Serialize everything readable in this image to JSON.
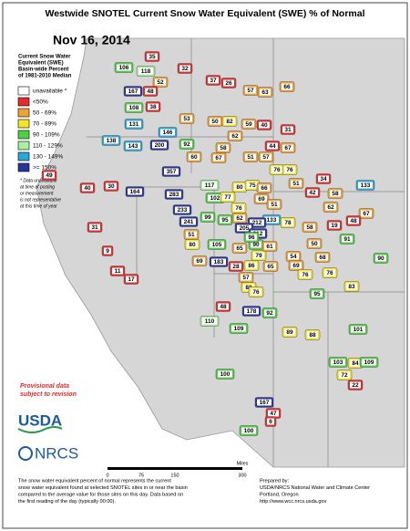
{
  "header": {
    "title": "Westwide SNOTEL Current Snow Water Equivalent (SWE) % of Normal",
    "date": "Nov 16, 2014"
  },
  "legend": {
    "title": [
      "Current Snow Water",
      "Equivalent (SWE)",
      "Basin-wide Percent",
      "of 1981-2010 Median"
    ],
    "items": [
      {
        "label": "unavailable *",
        "color": "#ffffff"
      },
      {
        "label": "<50%",
        "color": "#e52b2b"
      },
      {
        "label": "50 - 69%",
        "color": "#f0a236"
      },
      {
        "label": "70 - 89%",
        "color": "#f2e52a"
      },
      {
        "label": "90 - 109%",
        "color": "#4fcf45"
      },
      {
        "label": "110 - 129%",
        "color": "#a8f0a0"
      },
      {
        "label": "130 - 149%",
        "color": "#2aa6d9"
      },
      {
        "label": ">= 150%",
        "color": "#28359a"
      }
    ],
    "note": [
      "* Data unavailable",
      "at time of posting",
      "or measurement",
      "is not representative",
      "at this time of year"
    ]
  },
  "provisional": [
    "Provisional data",
    "subject to revision"
  ],
  "logos": [
    "USDA",
    "NRCS"
  ],
  "scale": {
    "ticks": [
      "0",
      "75",
      "150",
      "300"
    ],
    "unit": "Miles"
  },
  "footer": {
    "left": [
      "The snow water equivalent percent of normal represents the current",
      "snow water equivalent found at selected SNOTEL sites in or near the basin",
      "compared to the average value for those sites on this day. Data based on",
      "the first reading of the day (typically 00:00)."
    ],
    "right": [
      "Prepared by:",
      "USDA/NRCS National Water and Climate Center",
      "Portland, Oregon",
      "http://www.wcc.nrcs.usda.gov"
    ]
  },
  "basins": [
    {
      "value": 35,
      "color": "#e52b2b"
    },
    {
      "value": 32,
      "color": "#e52b2b"
    },
    {
      "value": 106,
      "color": "#4fcf45"
    },
    {
      "value": 118,
      "color": "#a8f0a0"
    },
    {
      "value": 52,
      "color": "#f0a236"
    },
    {
      "value": 167,
      "color": "#28359a"
    },
    {
      "value": 48,
      "color": "#e52b2b"
    },
    {
      "value": 37,
      "color": "#e52b2b"
    },
    {
      "value": 26,
      "color": "#e52b2b"
    },
    {
      "value": 57,
      "color": "#f0a236"
    },
    {
      "value": 63,
      "color": "#f0a236"
    },
    {
      "value": 66,
      "color": "#f0a236"
    },
    {
      "value": 108,
      "color": "#4fcf45"
    },
    {
      "value": 38,
      "color": "#e52b2b"
    },
    {
      "value": 53,
      "color": "#f0a236"
    },
    {
      "value": 50,
      "color": "#f0a236"
    },
    {
      "value": 82,
      "color": "#f2e52a"
    },
    {
      "value": 59,
      "color": "#f0a236"
    },
    {
      "value": 40,
      "color": "#e52b2b"
    },
    {
      "value": 31,
      "color": "#e52b2b"
    },
    {
      "value": 131,
      "color": "#2aa6d9"
    },
    {
      "value": 138,
      "color": "#2aa6d9"
    },
    {
      "value": 143,
      "color": "#2aa6d9"
    },
    {
      "value": 200,
      "color": "#28359a"
    },
    {
      "value": 146,
      "color": "#2aa6d9"
    },
    {
      "value": 92,
      "color": "#4fcf45"
    },
    {
      "value": 62,
      "color": "#f0a236"
    },
    {
      "value": 58,
      "color": "#f0a236"
    },
    {
      "value": 60,
      "color": "#f0a236"
    },
    {
      "value": 67,
      "color": "#f0a236"
    },
    {
      "value": 51,
      "color": "#f0a236"
    },
    {
      "value": 57,
      "color": "#f0a236"
    },
    {
      "value": 44,
      "color": "#e52b2b"
    },
    {
      "value": 67,
      "color": "#f0a236"
    },
    {
      "value": 76,
      "color": "#f2e52a"
    },
    {
      "value": 76,
      "color": "#f2e52a"
    },
    {
      "value": 51,
      "color": "#f0a236"
    },
    {
      "value": 34,
      "color": "#e52b2b"
    },
    {
      "value": 133,
      "color": "#2aa6d9"
    },
    {
      "value": 49,
      "color": "#e52b2b"
    },
    {
      "value": 40,
      "color": "#e52b2b"
    },
    {
      "value": 30,
      "color": "#e52b2b"
    },
    {
      "value": 164,
      "color": "#28359a"
    },
    {
      "value": 357,
      "color": "#28359a"
    },
    {
      "value": 283,
      "color": "#28359a"
    },
    {
      "value": 233,
      "color": "#28359a"
    },
    {
      "value": 241,
      "color": "#28359a"
    },
    {
      "value": 117,
      "color": "#a8f0a0"
    },
    {
      "value": 102,
      "color": "#4fcf45"
    },
    {
      "value": 77,
      "color": "#f2e52a"
    },
    {
      "value": 80,
      "color": "#f2e52a"
    },
    {
      "value": 75,
      "color": "#f2e52a"
    },
    {
      "value": 66,
      "color": "#f0a236"
    },
    {
      "value": 69,
      "color": "#f0a236"
    },
    {
      "value": 76,
      "color": "#f2e52a"
    },
    {
      "value": 42,
      "color": "#e52b2b"
    },
    {
      "value": 58,
      "color": "#f0a236"
    },
    {
      "value": 62,
      "color": "#f0a236"
    },
    {
      "value": 67,
      "color": "#f0a236"
    },
    {
      "value": 51,
      "color": "#f0a236"
    },
    {
      "value": 133,
      "color": "#2aa6d9"
    },
    {
      "value": 78,
      "color": "#f2e52a"
    },
    {
      "value": 99,
      "color": "#4fcf45"
    },
    {
      "value": 95,
      "color": "#4fcf45"
    },
    {
      "value": 62,
      "color": "#f0a236"
    },
    {
      "value": 212,
      "color": "#28359a"
    },
    {
      "value": 205,
      "color": "#28359a"
    },
    {
      "value": 212,
      "color": "#28359a"
    },
    {
      "value": 31,
      "color": "#e52b2b"
    },
    {
      "value": 51,
      "color": "#f0a236"
    },
    {
      "value": 80,
      "color": "#f2e52a"
    },
    {
      "value": 65,
      "color": "#f0a236"
    },
    {
      "value": 90,
      "color": "#4fcf45"
    },
    {
      "value": 96,
      "color": "#4fcf45"
    },
    {
      "value": 79,
      "color": "#f2e52a"
    },
    {
      "value": 61,
      "color": "#f0a236"
    },
    {
      "value": 54,
      "color": "#f0a236"
    },
    {
      "value": 50,
      "color": "#f0a236"
    },
    {
      "value": 58,
      "color": "#f0a236"
    },
    {
      "value": 19,
      "color": "#e52b2b"
    },
    {
      "value": 48,
      "color": "#e52b2b"
    },
    {
      "value": 91,
      "color": "#4fcf45"
    },
    {
      "value": 68,
      "color": "#f0a236"
    },
    {
      "value": 90,
      "color": "#4fcf45"
    },
    {
      "value": 9,
      "color": "#e52b2b"
    },
    {
      "value": 69,
      "color": "#f0a236"
    },
    {
      "value": 105,
      "color": "#4fcf45"
    },
    {
      "value": 86,
      "color": "#f2e52a"
    },
    {
      "value": 65,
      "color": "#f0a236"
    },
    {
      "value": 69,
      "color": "#f0a236"
    },
    {
      "value": 183,
      "color": "#28359a"
    },
    {
      "value": 11,
      "color": "#e52b2b"
    },
    {
      "value": 17,
      "color": "#e52b2b"
    },
    {
      "value": 28,
      "color": "#e52b2b"
    },
    {
      "value": 57,
      "color": "#f0a236"
    },
    {
      "value": 88,
      "color": "#f2e52a"
    },
    {
      "value": 76,
      "color": "#f2e52a"
    },
    {
      "value": 76,
      "color": "#f2e52a"
    },
    {
      "value": 83,
      "color": "#f2e52a"
    },
    {
      "value": 95,
      "color": "#4fcf45"
    },
    {
      "value": 76,
      "color": "#f2e52a"
    },
    {
      "value": 48,
      "color": "#e52b2b"
    },
    {
      "value": 92,
      "color": "#4fcf45"
    },
    {
      "value": 178,
      "color": "#28359a"
    },
    {
      "value": 110,
      "color": "#a8f0a0"
    },
    {
      "value": 109,
      "color": "#4fcf45"
    },
    {
      "value": 101,
      "color": "#4fcf45"
    },
    {
      "value": 89,
      "color": "#f2e52a"
    },
    {
      "value": 88,
      "color": "#f2e52a"
    },
    {
      "value": 103,
      "color": "#4fcf45"
    },
    {
      "value": 84,
      "color": "#f2e52a"
    },
    {
      "value": 109,
      "color": "#4fcf45"
    },
    {
      "value": 72,
      "color": "#f2e52a"
    },
    {
      "value": 22,
      "color": "#e52b2b"
    },
    {
      "value": 100,
      "color": "#4fcf45"
    },
    {
      "value": 167,
      "color": "#28359a"
    },
    {
      "value": 47,
      "color": "#e52b2b"
    },
    {
      "value": 6,
      "color": "#e52b2b"
    },
    {
      "value": 100,
      "color": "#4fcf45"
    }
  ]
}
